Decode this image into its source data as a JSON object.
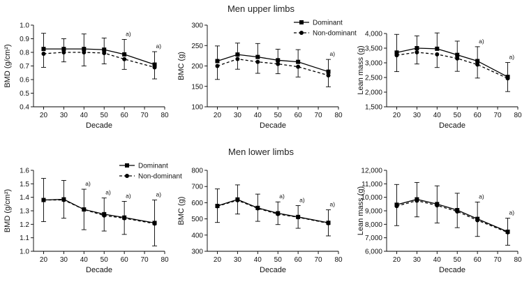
{
  "titles": {
    "upper": "Men upper limbs",
    "lower": "Men lower limbs"
  },
  "legend": {
    "dominant": "Dominant",
    "non_dominant": "Non-dominant"
  },
  "annotation_label": "a)",
  "chart_data": [
    {
      "type": "line",
      "group": "Men upper limbs",
      "ylabel": "BMD (g/cm²)",
      "xlabel": "Decade",
      "xlim": [
        15,
        80
      ],
      "xticks": [
        20,
        30,
        40,
        50,
        60,
        70,
        80
      ],
      "ylim": [
        0.4,
        1.0
      ],
      "yticks": [
        "0.4",
        "0.5",
        "0.6",
        "0.7",
        "0.8",
        "0.9",
        "1.0"
      ],
      "x": [
        20,
        30,
        40,
        50,
        60,
        75
      ],
      "series": [
        {
          "name": "Dominant",
          "values": [
            0.825,
            0.825,
            0.825,
            0.82,
            0.785,
            0.71
          ],
          "sd": [
            0.115,
            0.075,
            0.11,
            0.085,
            0.11,
            0.095
          ]
        },
        {
          "name": "Non-dominant",
          "values": [
            0.79,
            0.8,
            0.8,
            0.795,
            0.75,
            0.69
          ],
          "sd": [
            0.1,
            0.07,
            0.1,
            0.08,
            0.075,
            0.085
          ]
        }
      ],
      "annotations_x": [
        60,
        75
      ],
      "legend": false
    },
    {
      "type": "line",
      "group": "Men upper limbs",
      "ylabel": "BMC (g)",
      "xlabel": "Decade",
      "xlim": [
        15,
        80
      ],
      "xticks": [
        20,
        30,
        40,
        50,
        60,
        70,
        80
      ],
      "ylim": [
        100,
        300
      ],
      "yticks": [
        "100",
        "150",
        "200",
        "250",
        "300"
      ],
      "x": [
        20,
        30,
        40,
        50,
        60,
        75
      ],
      "series": [
        {
          "name": "Dominant",
          "values": [
            212,
            228,
            222,
            214,
            210,
            186
          ],
          "sd": [
            37,
            28,
            33,
            27,
            30,
            30
          ]
        },
        {
          "name": "Non-dominant",
          "values": [
            200,
            217,
            210,
            205,
            198,
            177
          ],
          "sd": [
            33,
            25,
            28,
            24,
            25,
            28
          ]
        }
      ],
      "annotations_x": [
        75
      ],
      "legend": true
    },
    {
      "type": "line",
      "group": "Men upper limbs",
      "ylabel": "Lean mass (g)",
      "xlabel": "Decade",
      "xlim": [
        15,
        80
      ],
      "xticks": [
        20,
        30,
        40,
        50,
        60,
        70,
        80
      ],
      "ylim": [
        1500,
        4000
      ],
      "yticks": [
        "1,500",
        "2,000",
        "2,500",
        "3,000",
        "3,500",
        "4,000"
      ],
      "x": [
        20,
        30,
        40,
        50,
        60,
        75
      ],
      "series": [
        {
          "name": "Dominant",
          "values": [
            3350,
            3500,
            3480,
            3270,
            3060,
            2520
          ],
          "sd": [
            620,
            420,
            540,
            470,
            490,
            490
          ]
        },
        {
          "name": "Non-dominant",
          "values": [
            3260,
            3360,
            3290,
            3150,
            2940,
            2470
          ],
          "sd": [
            560,
            400,
            450,
            440,
            460,
            450
          ]
        }
      ],
      "annotations_x": [
        60,
        75
      ],
      "legend": false
    },
    {
      "type": "line",
      "group": "Men lower limbs",
      "ylabel": "BMD (g/cm²)",
      "xlabel": "Decade",
      "xlim": [
        15,
        80
      ],
      "xticks": [
        20,
        30,
        40,
        50,
        60,
        70,
        80
      ],
      "ylim": [
        1.0,
        1.6
      ],
      "yticks": [
        "1.0",
        "1.1",
        "1.2",
        "1.3",
        "1.4",
        "1.5",
        "1.6"
      ],
      "x": [
        20,
        30,
        40,
        50,
        60,
        75
      ],
      "series": [
        {
          "name": "Dominant",
          "values": [
            1.38,
            1.385,
            1.31,
            1.275,
            1.25,
            1.21
          ],
          "sd": [
            0.16,
            0.14,
            0.15,
            0.12,
            0.12,
            0.17
          ]
        },
        {
          "name": "Non-dominant",
          "values": [
            1.38,
            1.38,
            1.31,
            1.265,
            1.245,
            1.205
          ],
          "sd": [
            0.16,
            0.135,
            0.15,
            0.115,
            0.12,
            0.165
          ]
        }
      ],
      "annotations_x": [
        40,
        50,
        60,
        75
      ],
      "legend": true
    },
    {
      "type": "line",
      "group": "Men lower limbs",
      "ylabel": "BMC (g)",
      "xlabel": "Decade",
      "xlim": [
        15,
        80
      ],
      "xticks": [
        20,
        30,
        40,
        50,
        60,
        70,
        80
      ],
      "ylim": [
        300,
        800
      ],
      "yticks": [
        "300",
        "400",
        "500",
        "600",
        "700",
        "800"
      ],
      "x": [
        20,
        30,
        40,
        50,
        60,
        75
      ],
      "series": [
        {
          "name": "Dominant",
          "values": [
            580,
            620,
            568,
            535,
            512,
            476
          ],
          "sd": [
            105,
            90,
            85,
            70,
            70,
            80
          ]
        },
        {
          "name": "Non-dominant",
          "values": [
            578,
            615,
            565,
            530,
            510,
            473
          ],
          "sd": [
            100,
            85,
            80,
            65,
            68,
            78
          ]
        }
      ],
      "annotations_x": [
        50,
        60,
        75
      ],
      "legend": false
    },
    {
      "type": "line",
      "group": "Men lower limbs",
      "ylabel": "Lean mass (g)",
      "xlabel": "Decade",
      "xlim": [
        15,
        80
      ],
      "xticks": [
        20,
        30,
        40,
        50,
        60,
        70,
        80
      ],
      "ylim": [
        6000,
        12000
      ],
      "yticks": [
        "6,000",
        "7,000",
        "8,000",
        "9,000",
        "10,000",
        "11,000",
        "12,000"
      ],
      "x": [
        20,
        30,
        40,
        50,
        60,
        75
      ],
      "series": [
        {
          "name": "Dominant",
          "values": [
            9450,
            9850,
            9500,
            9050,
            8400,
            7450
          ],
          "sd": [
            1500,
            1250,
            1350,
            1250,
            1250,
            1000
          ]
        },
        {
          "name": "Non-dominant",
          "values": [
            9350,
            9750,
            9400,
            8950,
            8300,
            7400
          ],
          "sd": [
            1450,
            1200,
            1300,
            1200,
            1200,
            950
          ]
        }
      ],
      "annotations_x": [
        60,
        75
      ],
      "legend": false
    }
  ]
}
